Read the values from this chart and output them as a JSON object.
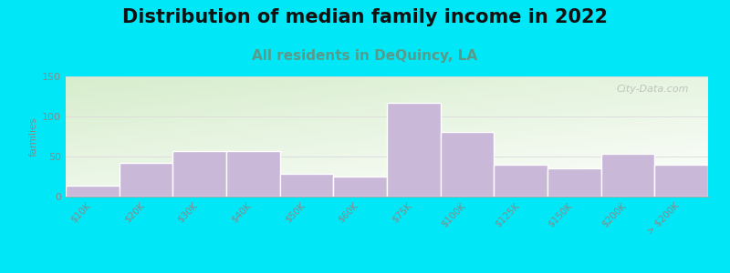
{
  "title": "Distribution of median family income in 2022",
  "subtitle": "All residents in DeQuincy, LA",
  "categories": [
    "$10K",
    "$20K",
    "$30K",
    "$40K",
    "$50K",
    "$60K",
    "$75K",
    "$100K",
    "$125K",
    "$150K",
    "$200K",
    "> $200K"
  ],
  "values": [
    14,
    42,
    57,
    57,
    28,
    25,
    117,
    81,
    40,
    35,
    53,
    40
  ],
  "bar_color": "#c9b8d8",
  "bar_edge_color": "#ffffff",
  "ylabel": "families",
  "ylim": [
    0,
    150
  ],
  "yticks": [
    0,
    50,
    100,
    150
  ],
  "background_outer": "#00e8f8",
  "plot_bg_top_left": "#d8eece",
  "plot_bg_bottom_right": "#eaf5f0",
  "title_fontsize": 15,
  "subtitle_fontsize": 11,
  "subtitle_color": "#5a9a8a",
  "watermark": "City-Data.com",
  "title_color": "#111111",
  "tick_color": "#888888",
  "grid_color": "#dddddd"
}
